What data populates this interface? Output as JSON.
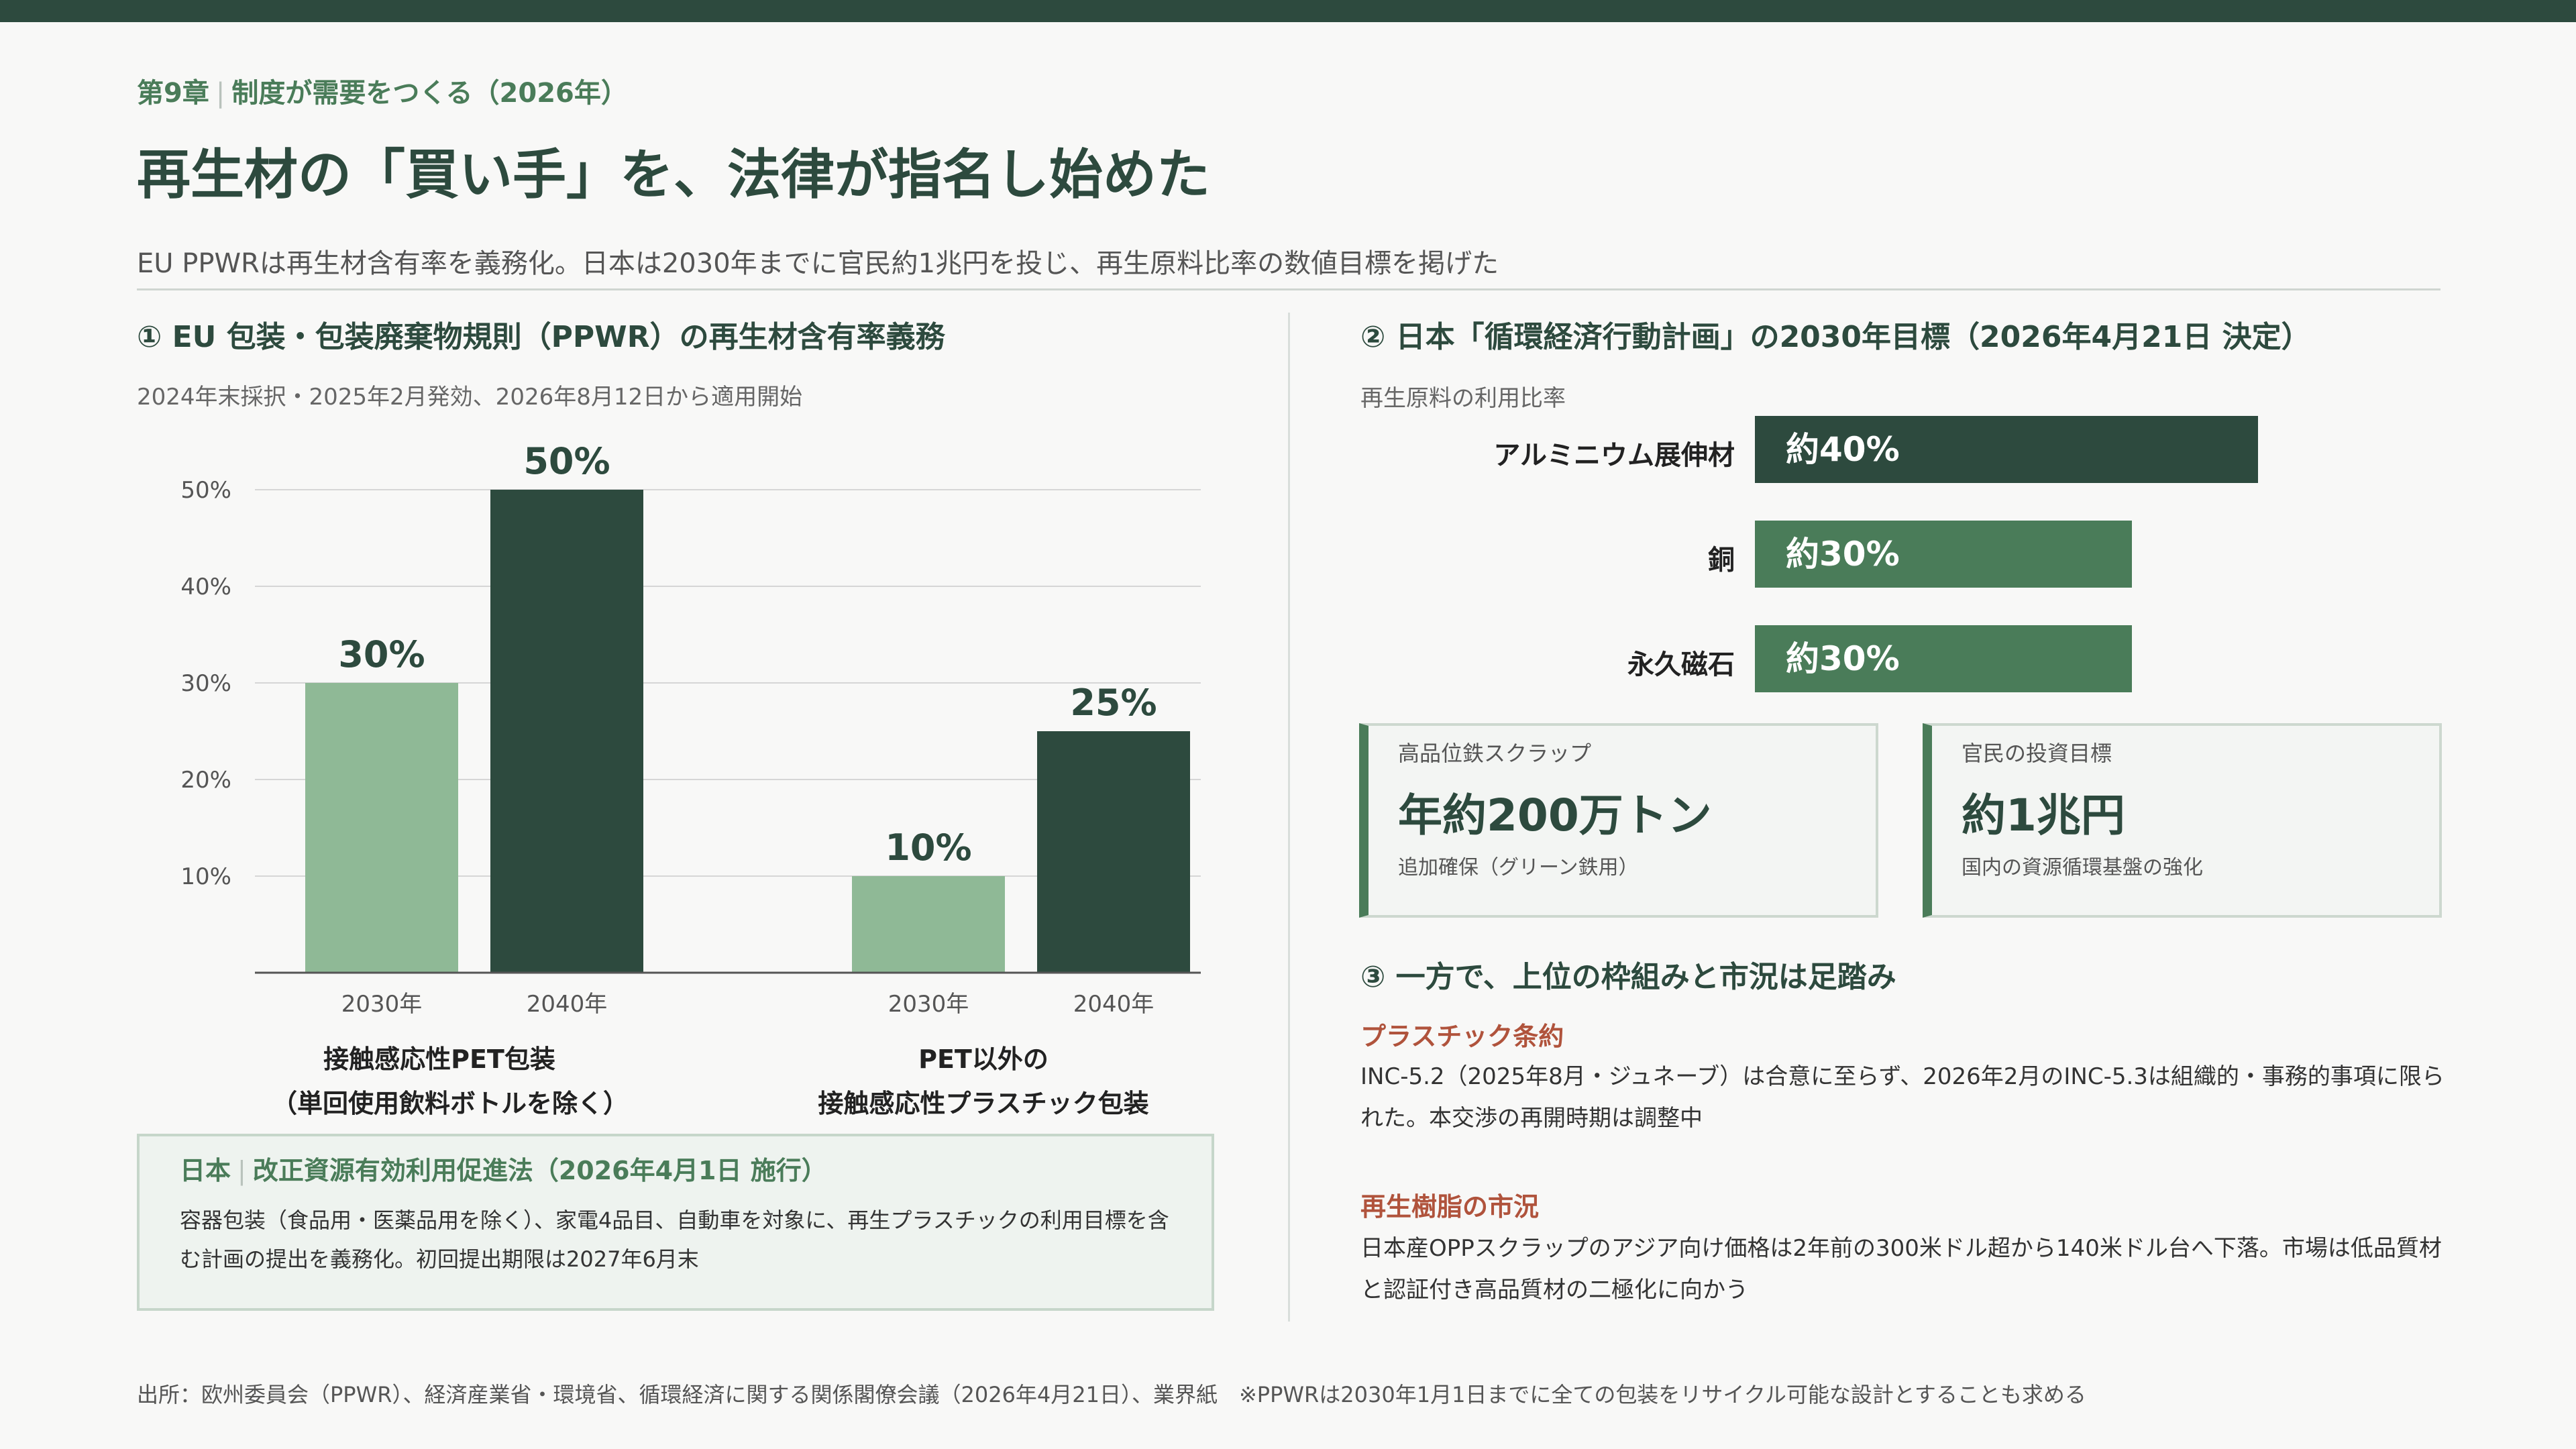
{
  "header": {
    "chapter": "第9章",
    "chapter_topic": "制度が需要をつくる（2026年）",
    "title": "再生材の「買い手」を、法律が指名し始めた",
    "subtitle": "EU PPWRは再生材含有率を義務化。日本は2030年までに官民約1兆円を投じ、再生原料比率の数値目標を掲げた"
  },
  "section1": {
    "heading": "①  EU 包装・包装廃棄物規則（PPWR）の再生材含有率義務",
    "note": "2024年末採択・2025年2月発効、2026年8月12日から適用開始"
  },
  "chart_data": [
    {
      "type": "bar",
      "groups": [
        {
          "label_lines": [
            "接触感応性PET包装",
            "（単回使用飲料ボトルを除く）"
          ],
          "categories": [
            "2030年",
            "2040年"
          ],
          "values": [
            30,
            50
          ]
        },
        {
          "label_lines": [
            "PET以外の",
            "接触感応性プラスチック包装"
          ],
          "categories": [
            "2030年",
            "2040年"
          ],
          "values": [
            10,
            25
          ]
        }
      ],
      "data_labels": [
        "30%",
        "50%",
        "10%",
        "25%"
      ],
      "y_ticks": [
        "10%",
        "20%",
        "30%",
        "40%",
        "50%"
      ],
      "ylim": [
        0,
        50
      ],
      "grid": true,
      "colors": {
        "2030年": "#8fb996",
        "2040年": "#2d4a3e"
      }
    },
    {
      "type": "bar",
      "orientation": "horizontal",
      "title": "再生原料の利用比率",
      "categories": [
        "アルミニウム展伸材",
        "銅",
        "永久磁石"
      ],
      "values": [
        40,
        30,
        30
      ],
      "data_labels": [
        "約40%",
        "約30%",
        "約30%"
      ],
      "colors": [
        "#2d4a3e",
        "#4a7c59",
        "#4a7c59"
      ]
    }
  ],
  "japan_box": {
    "label": "日本",
    "title": "改正資源有効利用促進法（2026年4月1日 施行）",
    "body": "容器包装（食品用・医薬品用を除く）、家電4品目、自動車を対象に、再生プラスチックの利用目標を含む計画の提出を義務化。初回提出期限は2027年6月末"
  },
  "section2": {
    "heading": "②  日本「循環経済行動計画」の2030年目標（2026年4月21日 決定）"
  },
  "cards": [
    {
      "label": "高品位鉄スクラップ",
      "value": "年約200万トン",
      "note": "追加確保（グリーン鉄用）"
    },
    {
      "label": "官民の投資目標",
      "value": "約1兆円",
      "note": "国内の資源循環基盤の強化"
    }
  ],
  "section3": {
    "heading": "③  一方で、上位の枠組みと市況は足踏み",
    "items": [
      {
        "title": "プラスチック条約",
        "body": "INC-5.2（2025年8月・ジュネーブ）は合意に至らず、2026年2月のINC-5.3は組織的・事務的事項に限られた。本交渉の再開時期は調整中"
      },
      {
        "title": "再生樹脂の市況",
        "body": "日本産OPPスクラップのアジア向け価格は2年前の300米ドル超から140米ドル台へ下落。市場は低品質材と認証付き高品質材の二極化に向かう"
      }
    ]
  },
  "footer": {
    "source": "出所：欧州委員会（PPWR）、経済産業省・環境省、循環経済に関する関係閣僚会議（2026年4月21日）、業界紙　※PPWRは2030年1月1日までに全ての包装をリサイクル可能な設計とすることも求める"
  }
}
